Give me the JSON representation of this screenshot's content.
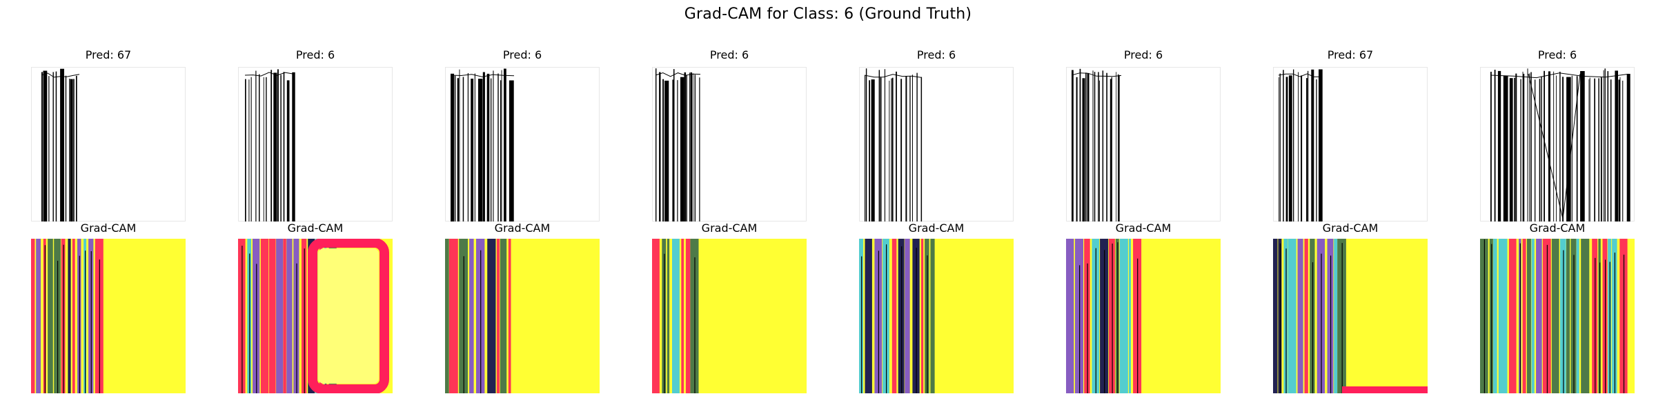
{
  "figure": {
    "title": "Grad-CAM for Class: 6 (Ground Truth)"
  },
  "heatmap_label": "Grad-CAM",
  "samples": [
    {
      "pred_label": "Pred: 67"
    },
    {
      "pred_label": "Pred: 6"
    },
    {
      "pred_label": "Pred: 6"
    },
    {
      "pred_label": "Pred: 6"
    },
    {
      "pred_label": "Pred: 6"
    },
    {
      "pred_label": "Pred: 6"
    },
    {
      "pred_label": "Pred: 67"
    },
    {
      "pred_label": "Pred: 6"
    }
  ],
  "colors": {
    "cam_yellow": "#ffff33",
    "cam_pink": "#ff1f5a",
    "cam_green": "#3b6b4a",
    "cam_navy": "#0a0a55",
    "cam_cyan": "#40c8e0",
    "cam_purple": "#7a4bd0",
    "stroke": "#000000",
    "frame": "#e6e6e6"
  }
}
